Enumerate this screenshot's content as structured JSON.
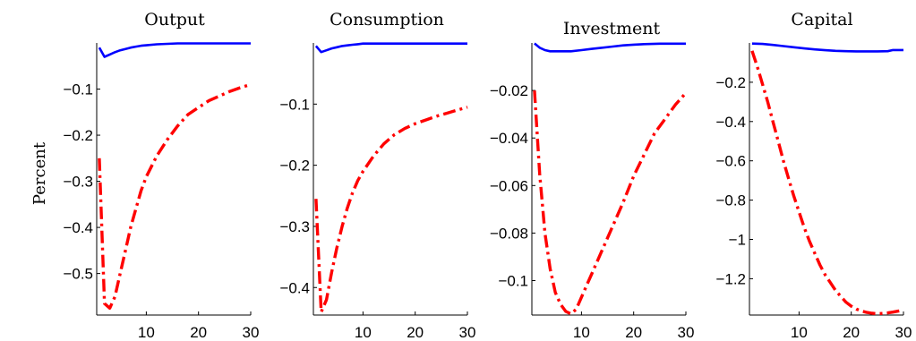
{
  "figure": {
    "ylabel": "Percent",
    "colors": {
      "series_a": "#0000ff",
      "series_b": "#ff0000"
    }
  },
  "chart_data": [
    {
      "type": "line",
      "title": "Output",
      "xlim": [
        0.5,
        30
      ],
      "ylim": [
        -0.59,
        0.0
      ],
      "x_ticks": [
        10,
        20,
        30
      ],
      "y_ticks": [
        -0.1,
        -0.2,
        -0.3,
        -0.4,
        -0.5
      ],
      "y_tick_labels": [
        "−0.1",
        "−0.2",
        "−0.3",
        "−0.4",
        "−0.5"
      ],
      "series": [
        {
          "style": "solid-blue",
          "x": [
            1,
            2,
            3,
            4,
            5,
            6,
            7,
            8,
            9,
            10,
            12,
            14,
            16,
            20,
            25,
            30
          ],
          "y": [
            -0.01,
            -0.03,
            -0.025,
            -0.02,
            -0.016,
            -0.013,
            -0.01,
            -0.008,
            -0.006,
            -0.005,
            -0.003,
            -0.002,
            -0.001,
            -0.001,
            -0.001,
            -0.001
          ]
        },
        {
          "style": "dashdot-red",
          "x": [
            1,
            2,
            3,
            4,
            5,
            6,
            7,
            8,
            9,
            10,
            12,
            14,
            16,
            18,
            20,
            22,
            24,
            26,
            28,
            30
          ],
          "y": [
            -0.25,
            -0.565,
            -0.575,
            -0.55,
            -0.5,
            -0.45,
            -0.4,
            -0.36,
            -0.32,
            -0.29,
            -0.245,
            -0.21,
            -0.18,
            -0.155,
            -0.14,
            -0.125,
            -0.115,
            -0.105,
            -0.097,
            -0.09
          ]
        }
      ]
    },
    {
      "type": "line",
      "title": "Consumption",
      "xlim": [
        0.5,
        30
      ],
      "ylim": [
        -0.445,
        0.0
      ],
      "x_ticks": [
        10,
        20,
        30
      ],
      "y_ticks": [
        -0.1,
        -0.2,
        -0.3,
        -0.4
      ],
      "y_tick_labels": [
        "−0.1",
        "−0.2",
        "−0.3",
        "−0.4"
      ],
      "series": [
        {
          "style": "solid-blue",
          "x": [
            1,
            2,
            3,
            4,
            5,
            6,
            7,
            8,
            9,
            10,
            12,
            14,
            16,
            20,
            25,
            30
          ],
          "y": [
            -0.005,
            -0.015,
            -0.012,
            -0.009,
            -0.007,
            -0.005,
            -0.004,
            -0.003,
            -0.002,
            -0.001,
            -0.001,
            -0.001,
            -0.001,
            -0.001,
            -0.001,
            -0.001
          ]
        },
        {
          "style": "dashdot-red",
          "x": [
            1,
            2,
            3,
            4,
            5,
            6,
            7,
            8,
            9,
            10,
            12,
            14,
            16,
            18,
            20,
            22,
            24,
            26,
            28,
            30
          ],
          "y": [
            -0.255,
            -0.44,
            -0.42,
            -0.375,
            -0.335,
            -0.3,
            -0.27,
            -0.245,
            -0.225,
            -0.21,
            -0.185,
            -0.165,
            -0.15,
            -0.14,
            -0.132,
            -0.126,
            -0.12,
            -0.115,
            -0.11,
            -0.105
          ]
        }
      ]
    },
    {
      "type": "line",
      "title": "Investment",
      "xlim": [
        0.5,
        30
      ],
      "ylim": [
        -0.1145,
        0.0
      ],
      "x_ticks": [
        10,
        20,
        30
      ],
      "y_ticks": [
        -0.02,
        -0.04,
        -0.06,
        -0.08,
        -0.1
      ],
      "y_tick_labels": [
        "−0.02",
        "−0.04",
        "−0.06",
        "−0.08",
        "−0.1"
      ],
      "series": [
        {
          "style": "solid-blue",
          "x": [
            1,
            2,
            3,
            4,
            6,
            8,
            10,
            12,
            14,
            16,
            18,
            20,
            22,
            25,
            30
          ],
          "y": [
            -0.0002,
            -0.002,
            -0.003,
            -0.0035,
            -0.0035,
            -0.0035,
            -0.003,
            -0.0025,
            -0.002,
            -0.0015,
            -0.001,
            -0.0007,
            -0.0005,
            -0.0003,
            -0.0003
          ]
        },
        {
          "style": "dashdot-red",
          "x": [
            1,
            2,
            3,
            4,
            5,
            6,
            7,
            8,
            9,
            10,
            11,
            12,
            14,
            16,
            18,
            20,
            22,
            24,
            26,
            28,
            30
          ],
          "y": [
            -0.02,
            -0.055,
            -0.08,
            -0.095,
            -0.105,
            -0.11,
            -0.113,
            -0.114,
            -0.112,
            -0.107,
            -0.102,
            -0.097,
            -0.087,
            -0.077,
            -0.067,
            -0.056,
            -0.047,
            -0.038,
            -0.032,
            -0.026,
            -0.021
          ]
        }
      ]
    },
    {
      "type": "line",
      "title": "Capital",
      "xlim": [
        0.5,
        30
      ],
      "ylim": [
        -1.385,
        0.0
      ],
      "x_ticks": [
        10,
        20,
        30
      ],
      "y_ticks": [
        -0.2,
        -0.4,
        -0.6,
        -0.8,
        -1.0,
        -1.2
      ],
      "y_tick_labels": [
        "−0.2",
        "−0.4",
        "−0.6",
        "−0.8",
        "−1",
        "−1.2"
      ],
      "series": [
        {
          "style": "solid-blue",
          "x": [
            1,
            3,
            5,
            7,
            9,
            11,
            13,
            15,
            17,
            19,
            21,
            23,
            25,
            27,
            28,
            30
          ],
          "y": [
            -0.003,
            -0.005,
            -0.01,
            -0.016,
            -0.022,
            -0.028,
            -0.033,
            -0.037,
            -0.04,
            -0.042,
            -0.043,
            -0.043,
            -0.043,
            -0.042,
            -0.036,
            -0.036
          ]
        },
        {
          "style": "dashdot-red",
          "x": [
            1,
            2,
            3,
            4,
            5,
            6,
            7,
            8,
            9,
            10,
            11,
            12,
            13,
            14,
            15,
            16,
            17,
            18,
            19,
            20,
            21,
            22,
            23,
            24,
            25,
            26,
            27,
            28,
            29,
            30
          ],
          "y": [
            -0.04,
            -0.12,
            -0.21,
            -0.3,
            -0.4,
            -0.5,
            -0.6,
            -0.69,
            -0.78,
            -0.86,
            -0.94,
            -1.01,
            -1.07,
            -1.13,
            -1.18,
            -1.22,
            -1.26,
            -1.29,
            -1.32,
            -1.34,
            -1.355,
            -1.365,
            -1.372,
            -1.376,
            -1.378,
            -1.377,
            -1.374,
            -1.37,
            -1.365,
            -1.36
          ]
        }
      ]
    }
  ]
}
